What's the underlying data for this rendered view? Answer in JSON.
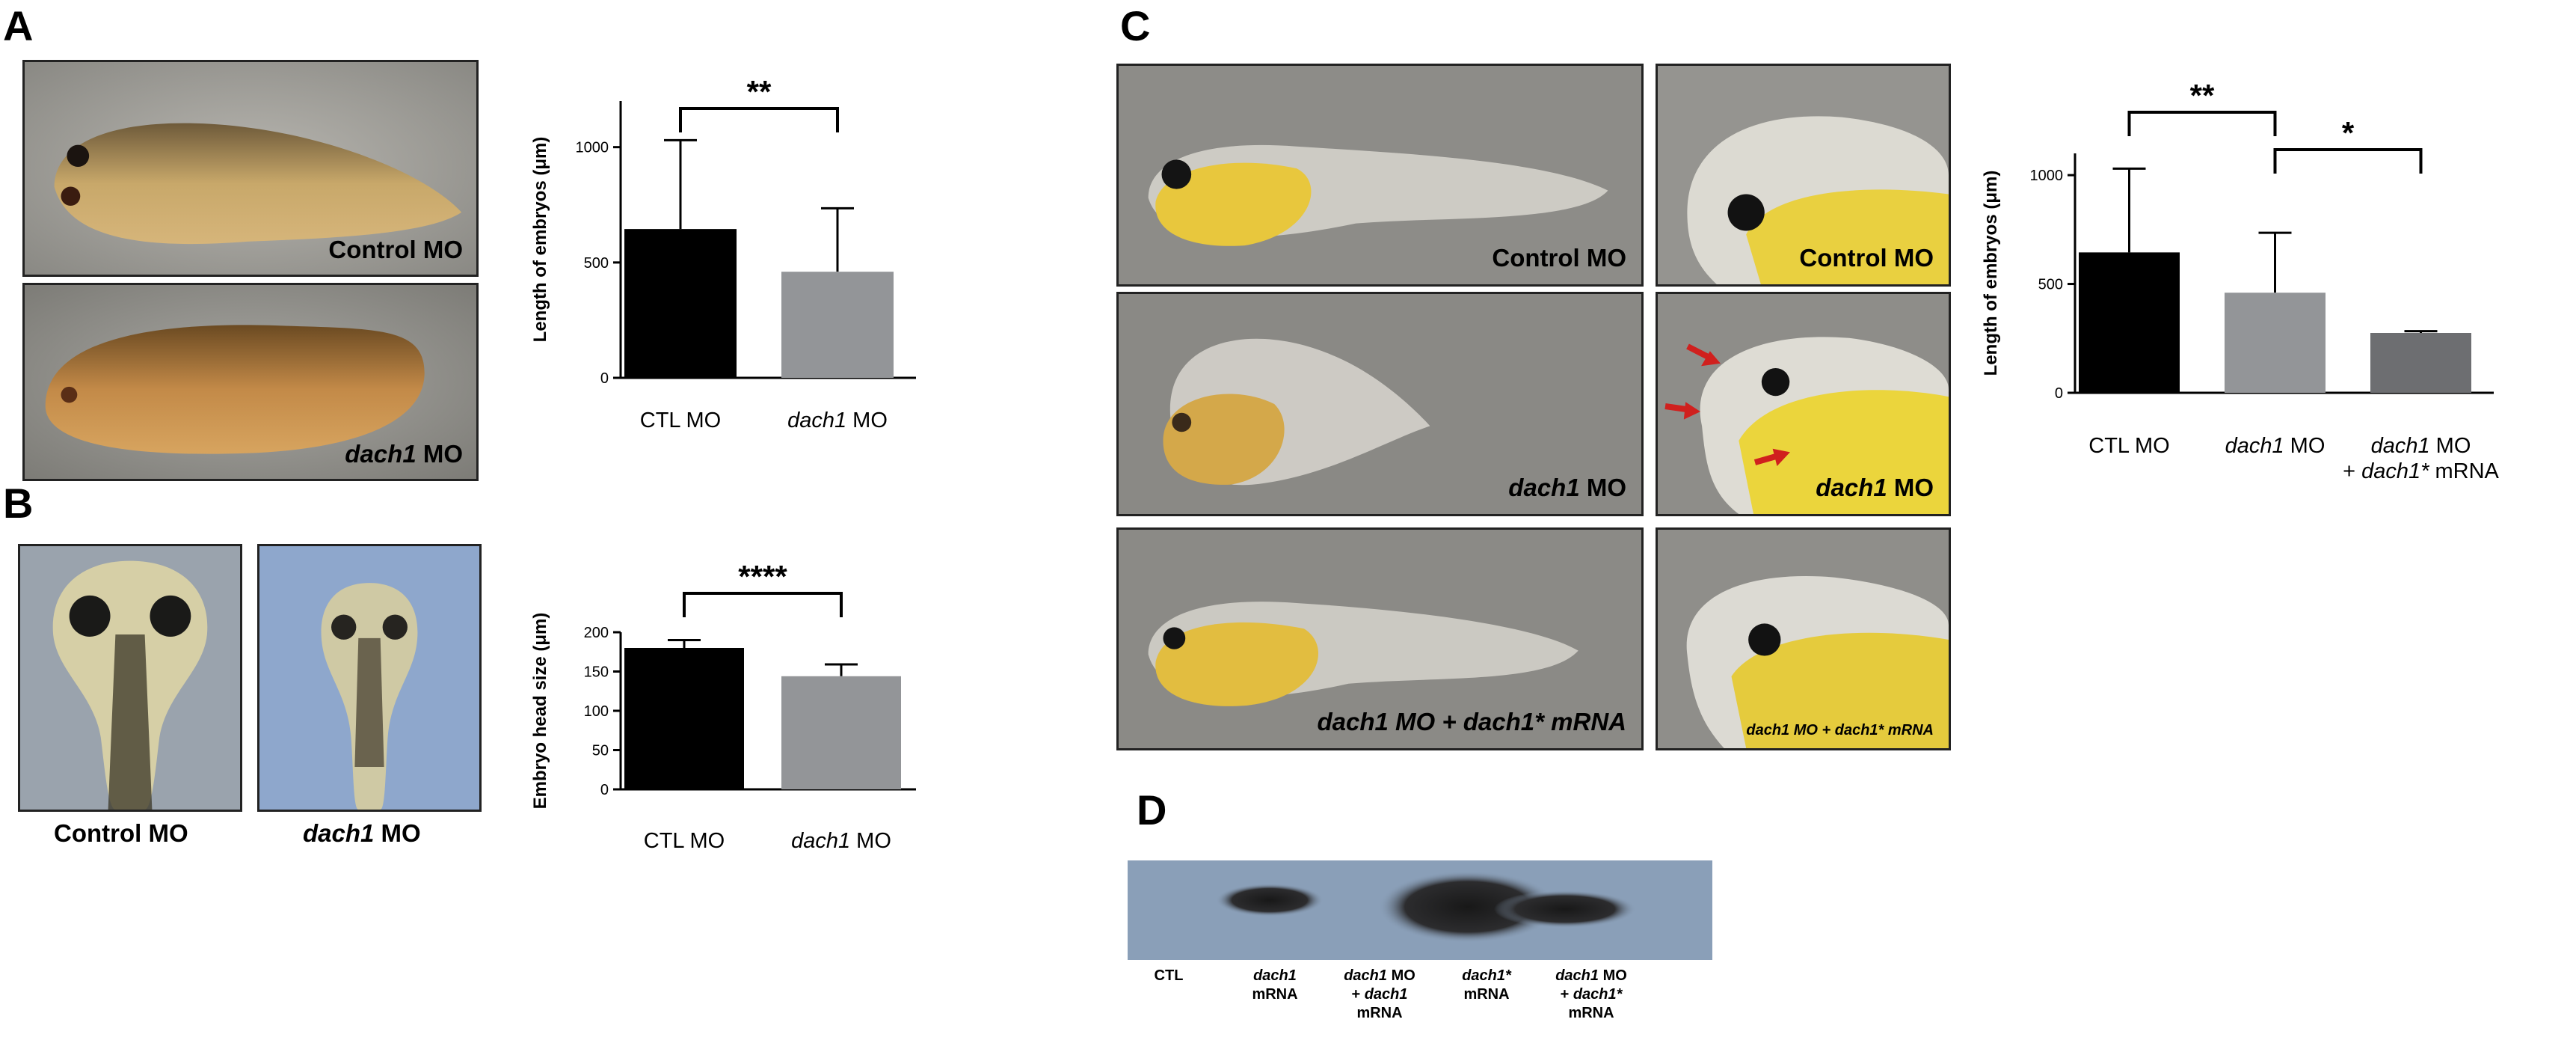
{
  "panels": {
    "A": "A",
    "B": "B",
    "C": "C",
    "D": "D"
  },
  "panelA": {
    "photo_top_label": "Control MO",
    "photo_bottom_label_italic": "dach1",
    "photo_bottom_label_rest": " MO"
  },
  "panelB": {
    "photo_left_caption": "Control MO",
    "photo_right_caption_italic": "dach1",
    "photo_right_caption_rest": " MO"
  },
  "panelC": {
    "row1_left_label": "Control MO",
    "row1_right_label": "Control MO",
    "row2_left_label_italic": "dach1",
    "row2_left_label_rest": " MO",
    "row2_right_label_italic": "dach1",
    "row2_right_label_rest": " MO",
    "row3_left_label": "dach1 MO + dach1* mRNA",
    "row3_right_label": "dach1 MO + dach1* mRNA"
  },
  "panelD": {
    "lanes": [
      {
        "line1": "CTL",
        "line2": "",
        "line3": ""
      },
      {
        "line1": "dach1",
        "line2": "mRNA",
        "line3": ""
      },
      {
        "line1": "dach1 MO",
        "line2": "+ dach1",
        "line3": "mRNA"
      },
      {
        "line1": "dach1*",
        "line2": "mRNA",
        "line3": ""
      },
      {
        "line1": "dach1 MO",
        "line2": "+ dach1*",
        "line3": "mRNA"
      }
    ]
  },
  "colors": {
    "black_bar": "#000000",
    "grey_bar": "#939598",
    "dark_grey_bar": "#6d6e71",
    "arrow_red": "#d0201e",
    "blot_bg": "#8a9fb8"
  },
  "chart_data": [
    {
      "id": "A",
      "type": "bar",
      "categories": [
        "CTL MO",
        "dach1 MO"
      ],
      "values": [
        645,
        460
      ],
      "errors": [
        385,
        275
      ],
      "colors": [
        "#000000",
        "#939598"
      ],
      "ylabel": "Length of embryos (μm)",
      "ylim": [
        0,
        1200
      ],
      "yticks": [
        0,
        500,
        1000
      ],
      "significance": [
        {
          "from": 0,
          "to": 1,
          "label": "**"
        }
      ]
    },
    {
      "id": "B",
      "type": "bar",
      "categories": [
        "CTL MO",
        "dach1 MO"
      ],
      "values": [
        180,
        144
      ],
      "errors": [
        10,
        15
      ],
      "colors": [
        "#000000",
        "#939598"
      ],
      "ylabel": "Embryo head size (μm)",
      "ylim": [
        0,
        200
      ],
      "yticks": [
        0,
        50,
        100,
        150,
        200
      ],
      "significance": [
        {
          "from": 0,
          "to": 1,
          "label": "****"
        }
      ]
    },
    {
      "id": "C",
      "type": "bar",
      "categories": [
        "CTL MO",
        "dach1 MO",
        "dach1 MO + dach1* mRNA"
      ],
      "values": [
        645,
        460,
        275
      ],
      "errors": [
        385,
        275,
        8
      ],
      "colors": [
        "#000000",
        "#939598",
        "#6d6e71"
      ],
      "ylabel": "Length of embryos (μm)",
      "ylim": [
        0,
        1100
      ],
      "yticks": [
        0,
        500,
        1000
      ],
      "significance": [
        {
          "from": 0,
          "to": 1,
          "label": "**"
        },
        {
          "from": 1,
          "to": 2,
          "label": "*"
        }
      ]
    }
  ]
}
